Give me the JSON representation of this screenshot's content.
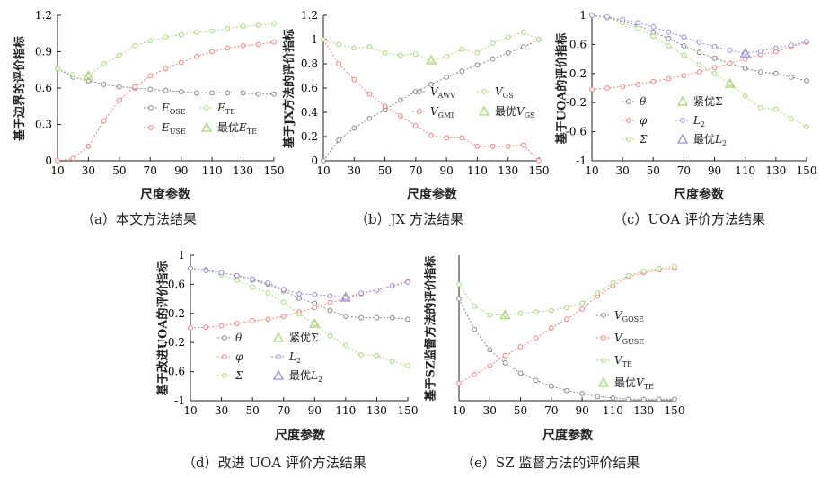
{
  "colors": {
    "red": "#f08080",
    "green": "#a8d878",
    "gray": "#888888",
    "blue": "#9a90d8",
    "axis": "#222222"
  },
  "chart_data": [
    {
      "id": "a",
      "type": "line",
      "caption": "（a）本文方法结果",
      "ylabel": "基于边界的评价指标",
      "xlabel": "尺度参数",
      "x": [
        10,
        20,
        30,
        40,
        50,
        60,
        70,
        80,
        90,
        100,
        110,
        120,
        130,
        140,
        150
      ],
      "xticks": [
        10,
        30,
        50,
        70,
        90,
        110,
        130,
        150
      ],
      "yticks": [
        0,
        0.3,
        0.6,
        0.9,
        1.2
      ],
      "ylim": [
        0,
        1.2
      ],
      "yticklabels": [
        "0",
        "0.3",
        "0.6",
        "0.9",
        "1.2"
      ],
      "series": [
        {
          "name": "E_OSE",
          "color": "gray",
          "values": [
            0.76,
            0.69,
            0.66,
            0.63,
            0.61,
            0.6,
            0.59,
            0.58,
            0.57,
            0.56,
            0.56,
            0.56,
            0.56,
            0.55,
            0.55
          ]
        },
        {
          "name": "E_USE",
          "color": "red",
          "values": [
            0,
            0.02,
            0.12,
            0.33,
            0.5,
            0.61,
            0.7,
            0.76,
            0.81,
            0.86,
            0.9,
            0.93,
            0.95,
            0.96,
            0.98
          ]
        },
        {
          "name": "E_TE",
          "color": "green",
          "values": [
            0.76,
            0.71,
            0.7,
            0.8,
            0.87,
            0.95,
            0.99,
            1.02,
            1.04,
            1.06,
            1.07,
            1.09,
            1.11,
            1.12,
            1.13
          ]
        }
      ],
      "optimal": {
        "x": 30,
        "y": 0.7,
        "color": "green"
      },
      "legend": [
        {
          "sym": "E",
          "sub": "OSE",
          "color": "gray",
          "kind": "line"
        },
        {
          "sym": "E",
          "sub": "TE",
          "color": "green",
          "kind": "line"
        },
        {
          "sym": "E",
          "sub": "USE",
          "color": "red",
          "kind": "line"
        },
        {
          "pre": "最优",
          "sym": "E",
          "sub": "TE",
          "color": "green",
          "kind": "tri"
        }
      ]
    },
    {
      "id": "b",
      "type": "line",
      "caption": "（b）JX 方法结果",
      "ylabel": "基于JX方法的评价指标",
      "xlabel": "尺度参数",
      "x": [
        10,
        20,
        30,
        40,
        50,
        60,
        70,
        80,
        90,
        100,
        110,
        120,
        130,
        140,
        150
      ],
      "xticks": [
        10,
        30,
        50,
        70,
        90,
        110,
        130,
        150
      ],
      "yticks": [
        0,
        0.2,
        0.4,
        0.6,
        0.8,
        1,
        1.2
      ],
      "ylim": [
        0,
        1.2
      ],
      "yticklabels": [
        "0",
        "0.2",
        "0.4",
        "0.6",
        "0.8",
        "1",
        "1.2"
      ],
      "series": [
        {
          "name": "V_AWV",
          "color": "gray",
          "values": [
            0,
            0.17,
            0.27,
            0.35,
            0.42,
            0.5,
            0.57,
            0.63,
            0.69,
            0.74,
            0.79,
            0.84,
            0.89,
            0.94,
            1.0
          ]
        },
        {
          "name": "V_GMI",
          "color": "red",
          "values": [
            1.0,
            0.8,
            0.67,
            0.55,
            0.45,
            0.37,
            0.29,
            0.21,
            0.19,
            0.19,
            0.12,
            0.12,
            0.12,
            0.13,
            0
          ]
        },
        {
          "name": "V_GS",
          "color": "green",
          "values": [
            1.0,
            0.96,
            0.93,
            0.94,
            0.89,
            0.87,
            0.88,
            0.83,
            0.86,
            0.92,
            0.89,
            0.97,
            1.02,
            1.06,
            1.0
          ]
        }
      ],
      "optimal": {
        "x": 80,
        "y": 0.83,
        "color": "green"
      },
      "legend": [
        {
          "sym": "V",
          "sub": "AWV",
          "color": "gray",
          "kind": "line"
        },
        {
          "sym": "V",
          "sub": "GS",
          "color": "green",
          "kind": "line"
        },
        {
          "sym": "V",
          "sub": "GMI",
          "color": "red",
          "kind": "line"
        },
        {
          "pre": "最优",
          "sym": "V",
          "sub": "GS",
          "color": "green",
          "kind": "tri"
        }
      ]
    },
    {
      "id": "c",
      "type": "line",
      "caption": "（c）UOA 评价方法结果",
      "ylabel": "基于UOA的评价指标",
      "xlabel": "尺度参数",
      "x": [
        10,
        20,
        30,
        40,
        50,
        60,
        70,
        80,
        90,
        100,
        110,
        120,
        130,
        140,
        150
      ],
      "xticks": [
        10,
        30,
        50,
        70,
        90,
        110,
        130,
        150
      ],
      "yticks": [
        -1,
        -0.6,
        -0.2,
        0.2,
        0.6,
        1
      ],
      "ylim": [
        -1,
        1
      ],
      "yticklabels": [
        "-1",
        "-0.6",
        "-0.2",
        "0.2",
        "0.6",
        "1"
      ],
      "series": [
        {
          "name": "θ",
          "color": "gray",
          "values": [
            1.0,
            0.97,
            0.92,
            0.86,
            0.77,
            0.68,
            0.58,
            0.49,
            0.41,
            0.34,
            0.27,
            0.22,
            0.2,
            0.15,
            0.1
          ]
        },
        {
          "name": "φ",
          "color": "red",
          "values": [
            -0.02,
            0.0,
            0.02,
            0.05,
            0.09,
            0.13,
            0.17,
            0.22,
            0.28,
            0.34,
            0.4,
            0.46,
            0.5,
            0.57,
            0.63
          ]
        },
        {
          "name": "Σ",
          "color": "green",
          "values": [
            1.0,
            0.97,
            0.9,
            0.82,
            0.71,
            0.58,
            0.45,
            0.32,
            0.2,
            0.06,
            -0.11,
            -0.27,
            -0.29,
            -0.42,
            -0.53
          ]
        },
        {
          "name": "L2",
          "color": "blue",
          "values": [
            1.0,
            0.98,
            0.94,
            0.9,
            0.84,
            0.77,
            0.7,
            0.63,
            0.57,
            0.52,
            0.48,
            0.51,
            0.55,
            0.59,
            0.64
          ]
        }
      ],
      "optimal_tri": {
        "x": 100,
        "y": 0.06,
        "color": "green"
      },
      "optimal_L2": {
        "x": 110,
        "y": 0.48,
        "color": "blue"
      },
      "legend": [
        {
          "sym": "θ",
          "color": "gray",
          "kind": "line"
        },
        {
          "text": "紧优Σ",
          "color": "green",
          "kind": "tri"
        },
        {
          "sym": "φ",
          "color": "red",
          "kind": "line"
        },
        {
          "sym": "L",
          "sub": "2",
          "color": "blue",
          "kind": "line"
        },
        {
          "sym": "Σ",
          "color": "green",
          "kind": "line"
        },
        {
          "pre": "最优",
          "sym": "L",
          "sub": "2",
          "color": "blue",
          "kind": "tri"
        }
      ]
    },
    {
      "id": "d",
      "type": "line",
      "caption": "（d）改进 UOA 评价方法结果",
      "ylabel": "基于改进UOA的评价指标",
      "xlabel": "尺度参数",
      "x": [
        10,
        20,
        30,
        40,
        50,
        60,
        70,
        80,
        90,
        100,
        110,
        120,
        130,
        140,
        150
      ],
      "xticks": [
        10,
        30,
        50,
        70,
        90,
        110,
        130,
        150
      ],
      "yticks": [
        -1,
        -0.6,
        -0.2,
        0.2,
        0.6,
        1
      ],
      "ylim": [
        -1,
        1
      ],
      "yticklabels": [
        "-1",
        "-0.6",
        "-0.2",
        "0.2",
        "0.6",
        "1"
      ],
      "series": [
        {
          "name": "θ",
          "color": "gray",
          "values": [
            0.82,
            0.8,
            0.76,
            0.72,
            0.66,
            0.6,
            0.51,
            0.41,
            0.34,
            0.24,
            0.16,
            0.14,
            0.14,
            0.14,
            0.12
          ]
        },
        {
          "name": "φ",
          "color": "red",
          "values": [
            0,
            0.01,
            0.03,
            0.06,
            0.1,
            0.12,
            0.16,
            0.22,
            0.28,
            0.35,
            0.4,
            0.47,
            0.52,
            0.58,
            0.64
          ]
        },
        {
          "name": "Σ",
          "color": "green",
          "values": [
            0.82,
            0.79,
            0.73,
            0.66,
            0.56,
            0.48,
            0.35,
            0.19,
            0.06,
            -0.11,
            -0.24,
            -0.37,
            -0.38,
            -0.46,
            -0.52
          ]
        },
        {
          "name": "L2",
          "color": "blue",
          "values": [
            0.82,
            0.79,
            0.76,
            0.72,
            0.67,
            0.62,
            0.53,
            0.47,
            0.46,
            0.44,
            0.42,
            0.48,
            0.52,
            0.58,
            0.63
          ]
        }
      ],
      "optimal_tri": {
        "x": 90,
        "y": 0.06,
        "color": "green"
      },
      "optimal_L2": {
        "x": 110,
        "y": 0.42,
        "color": "blue"
      },
      "legend": [
        {
          "sym": "θ",
          "color": "gray",
          "kind": "line"
        },
        {
          "text": "紧优Σ",
          "color": "green",
          "kind": "tri"
        },
        {
          "sym": "φ",
          "color": "red",
          "kind": "line"
        },
        {
          "sym": "L",
          "sub": "2",
          "color": "blue",
          "kind": "line"
        },
        {
          "sym": "Σ",
          "color": "green",
          "kind": "line"
        },
        {
          "pre": "最优",
          "sym": "L",
          "sub": "2",
          "color": "blue",
          "kind": "tri"
        }
      ]
    },
    {
      "id": "e",
      "type": "line",
      "caption": "（e）SZ 监督方法的评价结果",
      "ylabel": "基于SZ监督方法的评价指标",
      "xlabel": "尺度参数",
      "x": [
        10,
        20,
        30,
        40,
        50,
        60,
        70,
        80,
        90,
        100,
        110,
        120,
        130,
        140,
        150
      ],
      "xticks": [
        10,
        30,
        50,
        70,
        90,
        110,
        130,
        150
      ],
      "yticks": [],
      "ylim": [
        0,
        1
      ],
      "yticklabels": [],
      "series": [
        {
          "name": "V_GOSE",
          "color": "gray",
          "values": [
            0.7,
            0.49,
            0.35,
            0.26,
            0.19,
            0.14,
            0.1,
            0.07,
            0.05,
            0.03,
            0.02,
            0.01,
            0.01,
            0.01,
            0.01
          ]
        },
        {
          "name": "V_GUSE",
          "color": "red",
          "values": [
            0.12,
            0.18,
            0.24,
            0.31,
            0.37,
            0.43,
            0.5,
            0.56,
            0.63,
            0.72,
            0.79,
            0.85,
            0.88,
            0.9,
            0.91
          ]
        },
        {
          "name": "V_TE",
          "color": "green",
          "values": [
            0.8,
            0.65,
            0.59,
            0.59,
            0.6,
            0.61,
            0.62,
            0.64,
            0.67,
            0.74,
            0.81,
            0.86,
            0.89,
            0.91,
            0.92
          ]
        }
      ],
      "optimal": {
        "x": 40,
        "y": 0.59,
        "color": "green"
      },
      "legend": [
        {
          "sym": "V",
          "sub": "GOSE",
          "color": "gray",
          "kind": "line"
        },
        {
          "sym": "V",
          "sub": "GUSE",
          "color": "red",
          "kind": "line"
        },
        {
          "sym": "V",
          "sub": "TE",
          "color": "green",
          "kind": "line"
        },
        {
          "pre": "最优",
          "sym": "V",
          "sub": "TE",
          "color": "green",
          "kind": "tri"
        }
      ]
    }
  ]
}
